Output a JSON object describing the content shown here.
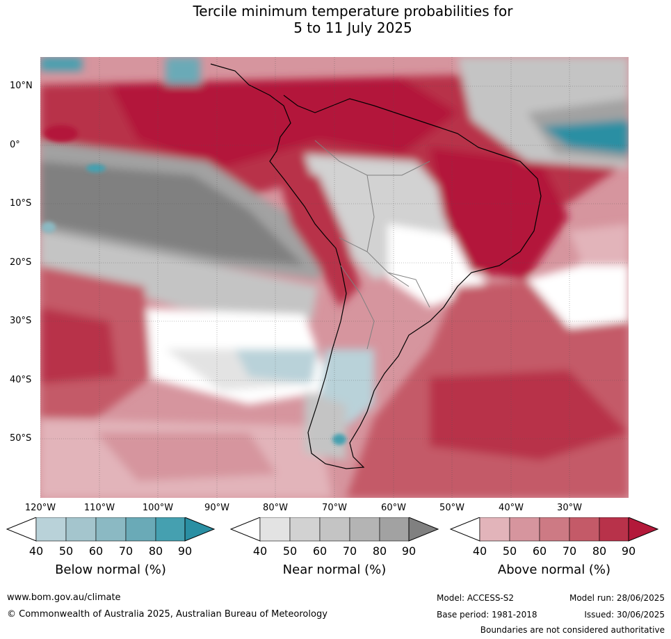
{
  "title_line1": "Tercile minimum temperature probabilities for",
  "title_line2": "5 to 11 July 2025",
  "lat_labels": [
    "10°N",
    "0°",
    "10°S",
    "20°S",
    "30°S",
    "40°S",
    "50°S"
  ],
  "lon_labels": [
    "120°W",
    "110°W",
    "100°W",
    "90°W",
    "80°W",
    "70°W",
    "60°W",
    "50°W",
    "40°W",
    "30°W"
  ],
  "colorbars": [
    {
      "label": "Below normal (%)",
      "ticks": [
        "40",
        "50",
        "60",
        "70",
        "80",
        "90"
      ],
      "colors": [
        "#ffffff",
        "#b9d2d9",
        "#a4c5cd",
        "#8bb9c3",
        "#6aaab7",
        "#45a0b0",
        "#2a8fa3"
      ]
    },
    {
      "label": "Near normal (%)",
      "ticks": [
        "40",
        "50",
        "60",
        "70",
        "80",
        "90"
      ],
      "colors": [
        "#ffffff",
        "#e3e3e3",
        "#d2d2d2",
        "#c4c4c4",
        "#b4b4b4",
        "#a2a2a2",
        "#808080"
      ]
    },
    {
      "label": "Above normal (%)",
      "ticks": [
        "40",
        "50",
        "60",
        "70",
        "80",
        "90"
      ],
      "colors": [
        "#ffffff",
        "#e2b4ba",
        "#d6959e",
        "#cd7a84",
        "#c45a68",
        "#b8324a",
        "#b3193a"
      ]
    }
  ],
  "footer": {
    "website": "www.bom.gov.au/climate",
    "copyright": "© Commonwealth of Australia 2025, Australian Bureau of Meteorology",
    "model": "Model: ACCESS-S2",
    "base_period": "Base period: 1981-2018",
    "model_run": "Model run: 28/06/2025",
    "issued": "Issued: 30/06/2025",
    "disclaimer": "Boundaries are not considered authoritative"
  }
}
